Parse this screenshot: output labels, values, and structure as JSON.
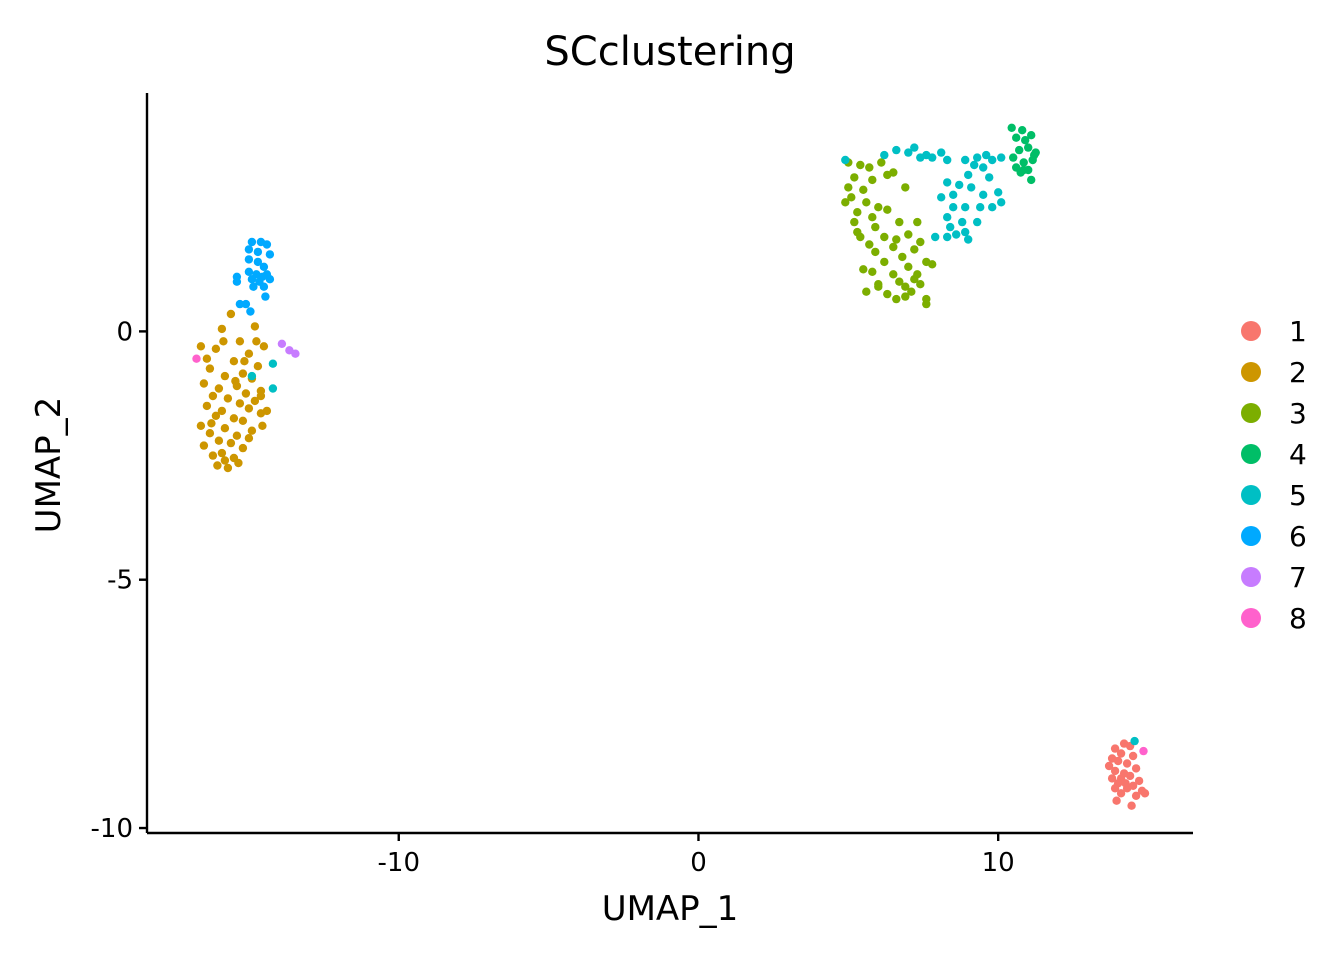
{
  "chart_data": {
    "type": "scatter",
    "title": "SCclustering",
    "xlabel": "UMAP_1",
    "ylabel": "UMAP_2",
    "xlim": [
      -18.4,
      16.5
    ],
    "ylim": [
      -10.1,
      4.8
    ],
    "x_ticks": [
      {
        "value": -10,
        "label": "-10"
      },
      {
        "value": 0,
        "label": "0"
      },
      {
        "value": 10,
        "label": "10"
      }
    ],
    "y_ticks": [
      {
        "value": 0,
        "label": "0"
      },
      {
        "value": -5,
        "label": "-5"
      },
      {
        "value": -10,
        "label": "-10"
      }
    ],
    "grid": false,
    "legend_position": "right",
    "series": [
      {
        "name": "1",
        "color": "#F8766D",
        "points": [
          [
            14.2,
            -8.3
          ],
          [
            14.4,
            -8.35
          ],
          [
            13.9,
            -8.4
          ],
          [
            14.1,
            -8.5
          ],
          [
            14.5,
            -8.55
          ],
          [
            13.8,
            -8.6
          ],
          [
            14.0,
            -8.65
          ],
          [
            14.3,
            -8.7
          ],
          [
            13.7,
            -8.75
          ],
          [
            14.6,
            -8.8
          ],
          [
            13.9,
            -8.85
          ],
          [
            14.2,
            -8.9
          ],
          [
            14.4,
            -8.95
          ],
          [
            13.8,
            -9.0
          ],
          [
            14.1,
            -9.0
          ],
          [
            14.7,
            -9.05
          ],
          [
            14.0,
            -9.1
          ],
          [
            14.5,
            -9.15
          ],
          [
            13.9,
            -9.2
          ],
          [
            14.3,
            -9.2
          ],
          [
            14.8,
            -9.25
          ],
          [
            14.1,
            -9.3
          ],
          [
            14.6,
            -9.35
          ],
          [
            13.95,
            -9.45
          ],
          [
            14.45,
            -9.55
          ],
          [
            14.9,
            -9.3
          ],
          [
            14.25,
            -9.1
          ]
        ]
      },
      {
        "name": "2",
        "color": "#CD9600",
        "points": [
          [
            -15.6,
            0.35
          ],
          [
            -15.9,
            0.05
          ],
          [
            -14.8,
            0.1
          ],
          [
            -15.3,
            -0.2
          ],
          [
            -14.5,
            -0.3
          ],
          [
            -16.1,
            -0.35
          ],
          [
            -15.0,
            -0.45
          ],
          [
            -16.4,
            -0.55
          ],
          [
            -15.5,
            -0.6
          ],
          [
            -14.7,
            -0.7
          ],
          [
            -16.3,
            -0.75
          ],
          [
            -15.2,
            -0.85
          ],
          [
            -15.8,
            -0.9
          ],
          [
            -14.9,
            -0.95
          ],
          [
            -16.5,
            -1.05
          ],
          [
            -15.4,
            -1.1
          ],
          [
            -16.0,
            -1.15
          ],
          [
            -14.6,
            -1.2
          ],
          [
            -15.1,
            -1.25
          ],
          [
            -16.2,
            -1.3
          ],
          [
            -15.7,
            -1.35
          ],
          [
            -14.8,
            -1.4
          ],
          [
            -15.3,
            -1.45
          ],
          [
            -16.4,
            -1.5
          ],
          [
            -15.0,
            -1.55
          ],
          [
            -15.9,
            -1.6
          ],
          [
            -14.6,
            -1.65
          ],
          [
            -16.1,
            -1.7
          ],
          [
            -15.5,
            -1.75
          ],
          [
            -15.2,
            -1.8
          ],
          [
            -14.4,
            -1.6
          ],
          [
            -16.6,
            -1.9
          ],
          [
            -15.8,
            -1.95
          ],
          [
            -14.9,
            -2.0
          ],
          [
            -16.3,
            -2.05
          ],
          [
            -15.4,
            -2.1
          ],
          [
            -15.0,
            -2.15
          ],
          [
            -16.0,
            -2.2
          ],
          [
            -15.6,
            -2.25
          ],
          [
            -16.5,
            -2.3
          ],
          [
            -15.2,
            -2.35
          ],
          [
            -15.9,
            -2.45
          ],
          [
            -16.2,
            -2.5
          ],
          [
            -15.5,
            -2.55
          ],
          [
            -15.8,
            -2.6
          ],
          [
            -15.35,
            -2.65
          ],
          [
            -16.05,
            -2.7
          ],
          [
            -15.7,
            -2.75
          ],
          [
            -14.6,
            -1.3
          ],
          [
            -16.6,
            -0.3
          ],
          [
            -15.45,
            -1.0
          ],
          [
            -14.75,
            -0.2
          ],
          [
            -15.85,
            -0.2
          ],
          [
            -16.25,
            -1.85
          ],
          [
            -15.15,
            -0.6
          ],
          [
            -14.55,
            -1.9
          ]
        ]
      },
      {
        "name": "3",
        "color": "#7CAE00",
        "points": [
          [
            5.0,
            3.4
          ],
          [
            5.4,
            3.35
          ],
          [
            5.7,
            3.3
          ],
          [
            6.1,
            3.4
          ],
          [
            6.5,
            3.2
          ],
          [
            5.2,
            3.1
          ],
          [
            5.8,
            3.05
          ],
          [
            6.3,
            3.15
          ],
          [
            5.0,
            2.9
          ],
          [
            5.5,
            2.85
          ],
          [
            6.9,
            2.9
          ],
          [
            5.1,
            2.7
          ],
          [
            5.6,
            2.6
          ],
          [
            6.0,
            2.5
          ],
          [
            4.9,
            2.6
          ],
          [
            5.3,
            2.4
          ],
          [
            5.8,
            2.3
          ],
          [
            6.3,
            2.45
          ],
          [
            5.2,
            2.2
          ],
          [
            5.9,
            2.1
          ],
          [
            6.7,
            2.2
          ],
          [
            7.3,
            2.2
          ],
          [
            5.4,
            1.9
          ],
          [
            6.2,
            1.9
          ],
          [
            7.0,
            1.95
          ],
          [
            7.4,
            1.8
          ],
          [
            5.7,
            1.75
          ],
          [
            6.5,
            1.7
          ],
          [
            7.2,
            1.65
          ],
          [
            5.9,
            1.6
          ],
          [
            6.8,
            1.5
          ],
          [
            7.6,
            1.4
          ],
          [
            6.2,
            1.4
          ],
          [
            7.0,
            1.3
          ],
          [
            5.8,
            1.2
          ],
          [
            6.5,
            1.15
          ],
          [
            7.3,
            1.15
          ],
          [
            7.8,
            1.35
          ],
          [
            6.0,
            0.95
          ],
          [
            6.7,
            1.0
          ],
          [
            7.4,
            0.95
          ],
          [
            5.6,
            0.8
          ],
          [
            6.3,
            0.75
          ],
          [
            7.1,
            0.8
          ],
          [
            6.9,
            0.7
          ],
          [
            7.6,
            0.65
          ],
          [
            6.6,
            0.65
          ],
          [
            7.6,
            0.55
          ],
          [
            6.0,
            0.9
          ],
          [
            5.3,
            2.0
          ],
          [
            6.9,
            0.9
          ],
          [
            7.2,
            1.05
          ],
          [
            5.5,
            1.25
          ],
          [
            6.6,
            1.85
          ]
        ]
      },
      {
        "name": "4",
        "color": "#00BE67",
        "points": [
          [
            10.45,
            4.1
          ],
          [
            10.8,
            4.05
          ],
          [
            11.1,
            3.95
          ],
          [
            10.6,
            3.9
          ],
          [
            10.9,
            3.85
          ],
          [
            11.0,
            3.7
          ],
          [
            10.7,
            3.65
          ],
          [
            11.2,
            3.55
          ],
          [
            10.5,
            3.5
          ],
          [
            10.85,
            3.4
          ],
          [
            11.15,
            3.45
          ],
          [
            10.6,
            3.3
          ],
          [
            11.0,
            3.25
          ],
          [
            10.75,
            3.2
          ],
          [
            11.1,
            3.05
          ],
          [
            10.85,
            3.25
          ],
          [
            11.25,
            3.6
          ]
        ]
      },
      {
        "name": "5",
        "color": "#00BFC4",
        "points": [
          [
            4.9,
            3.45
          ],
          [
            6.2,
            3.55
          ],
          [
            6.6,
            3.65
          ],
          [
            7.0,
            3.6
          ],
          [
            7.2,
            3.7
          ],
          [
            7.4,
            3.5
          ],
          [
            7.6,
            3.55
          ],
          [
            7.8,
            3.5
          ],
          [
            8.1,
            3.6
          ],
          [
            8.3,
            3.45
          ],
          [
            8.9,
            3.45
          ],
          [
            9.3,
            3.5
          ],
          [
            9.6,
            3.55
          ],
          [
            9.8,
            3.45
          ],
          [
            10.1,
            3.5
          ],
          [
            9.2,
            3.35
          ],
          [
            9.5,
            3.3
          ],
          [
            9.0,
            3.15
          ],
          [
            9.7,
            3.1
          ],
          [
            8.3,
            3.0
          ],
          [
            8.7,
            2.95
          ],
          [
            9.1,
            2.9
          ],
          [
            8.5,
            2.75
          ],
          [
            9.5,
            2.75
          ],
          [
            10.0,
            2.8
          ],
          [
            8.1,
            2.7
          ],
          [
            8.5,
            2.5
          ],
          [
            8.9,
            2.5
          ],
          [
            9.4,
            2.5
          ],
          [
            9.8,
            2.5
          ],
          [
            10.1,
            2.6
          ],
          [
            8.3,
            2.3
          ],
          [
            8.8,
            2.2
          ],
          [
            9.3,
            2.2
          ],
          [
            8.9,
            2.0
          ],
          [
            8.6,
            1.95
          ],
          [
            8.3,
            1.9
          ],
          [
            7.9,
            1.9
          ],
          [
            9.0,
            1.85
          ],
          [
            8.4,
            2.1
          ],
          [
            -14.9,
            -0.9
          ],
          [
            -14.2,
            -1.15
          ],
          [
            -14.2,
            -0.65
          ],
          [
            14.55,
            -8.25
          ]
        ]
      },
      {
        "name": "6",
        "color": "#00A9FF",
        "points": [
          [
            -14.9,
            1.8
          ],
          [
            -14.6,
            1.8
          ],
          [
            -14.4,
            1.75
          ],
          [
            -15.0,
            1.65
          ],
          [
            -14.7,
            1.6
          ],
          [
            -14.3,
            1.55
          ],
          [
            -15.0,
            1.45
          ],
          [
            -14.7,
            1.4
          ],
          [
            -14.5,
            1.3
          ],
          [
            -15.0,
            1.2
          ],
          [
            -14.75,
            1.15
          ],
          [
            -14.4,
            1.15
          ],
          [
            -15.4,
            1.1
          ],
          [
            -14.9,
            1.05
          ],
          [
            -14.55,
            1.1
          ],
          [
            -15.4,
            1.0
          ],
          [
            -14.65,
            1.0
          ],
          [
            -14.3,
            1.05
          ],
          [
            -14.85,
            0.9
          ],
          [
            -14.5,
            0.9
          ],
          [
            -14.45,
            0.7
          ],
          [
            -15.3,
            0.55
          ],
          [
            -15.1,
            0.55
          ],
          [
            -14.95,
            0.4
          ]
        ]
      },
      {
        "name": "7",
        "color": "#C77CFF",
        "points": [
          [
            -13.9,
            -0.25
          ],
          [
            -13.65,
            -0.38
          ],
          [
            -13.45,
            -0.45
          ]
        ]
      },
      {
        "name": "8",
        "color": "#FF61CC",
        "points": [
          [
            -16.75,
            -0.55
          ],
          [
            14.85,
            -8.45
          ]
        ]
      }
    ]
  }
}
